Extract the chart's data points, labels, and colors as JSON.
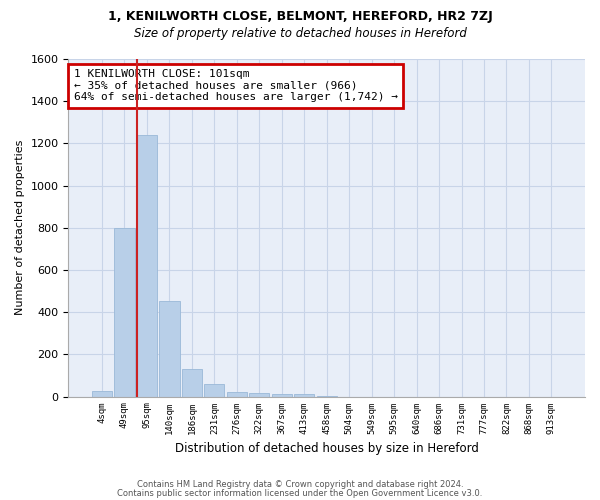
{
  "title1": "1, KENILWORTH CLOSE, BELMONT, HEREFORD, HR2 7ZJ",
  "title2": "Size of property relative to detached houses in Hereford",
  "xlabel": "Distribution of detached houses by size in Hereford",
  "ylabel": "Number of detached properties",
  "bar_labels": [
    "4sqm",
    "49sqm",
    "95sqm",
    "140sqm",
    "186sqm",
    "231sqm",
    "276sqm",
    "322sqm",
    "367sqm",
    "413sqm",
    "458sqm",
    "504sqm",
    "549sqm",
    "595sqm",
    "640sqm",
    "686sqm",
    "731sqm",
    "777sqm",
    "822sqm",
    "868sqm",
    "913sqm"
  ],
  "bar_values": [
    25,
    800,
    1240,
    455,
    130,
    60,
    20,
    18,
    12,
    10,
    5,
    0,
    0,
    0,
    0,
    0,
    0,
    0,
    0,
    0,
    0
  ],
  "bar_color": "#b8cfe8",
  "bar_edge_color": "#9ab8d8",
  "grid_color": "#c8d4e8",
  "bg_color": "#e8eef8",
  "vline_x_index": 2,
  "vline_color": "#cc2222",
  "annotation_text": "1 KENILWORTH CLOSE: 101sqm\n← 35% of detached houses are smaller (966)\n64% of semi-detached houses are larger (1,742) →",
  "annotation_box_color": "#cc0000",
  "ylim": [
    0,
    1600
  ],
  "yticks": [
    0,
    200,
    400,
    600,
    800,
    1000,
    1200,
    1400,
    1600
  ],
  "footer1": "Contains HM Land Registry data © Crown copyright and database right 2024.",
  "footer2": "Contains public sector information licensed under the Open Government Licence v3.0."
}
